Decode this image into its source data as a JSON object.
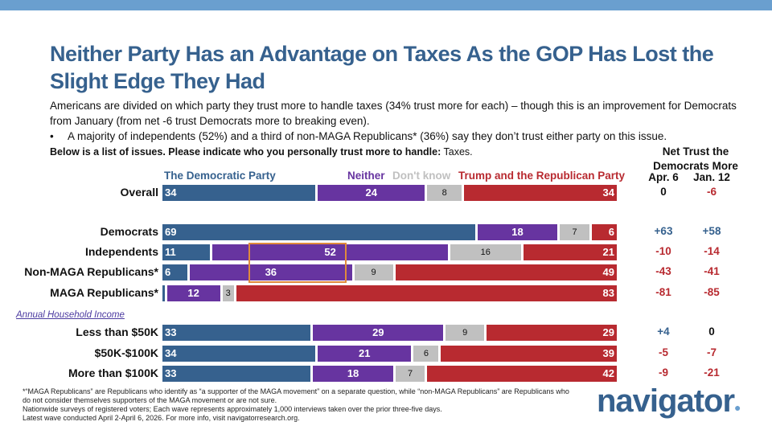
{
  "title": "Neither Party Has an Advantage on Taxes As the GOP Has Lost the Slight Edge They Had",
  "subtitle": "Americans are divided on which party they trust more to handle taxes (34% trust more for each) – though this is an improvement for Democrats from January (from net -6 trust Democrats more to breaking even).",
  "bullet": "A majority of independents (52%) and a third of non-MAGA Republicans* (36%) say they don’t trust either party on this issue.",
  "question": {
    "prefix": "Below is a list of issues. Please indicate who you personally trust more to handle:",
    "topic": "Taxes."
  },
  "net_header": {
    "title": "Net Trust the Democrats More",
    "col1": "Apr. 6",
    "col2": "Jan. 12"
  },
  "section_label": "Annual Household Income",
  "footnote": [
    "*“MAGA Republicans” are Republicans who identify as “a supporter of the MAGA movement” on a separate question, while “non-MAGA Republicans” are Republicans who do not consider themselves supporters of the MAGA movement or are not sure.",
    "Nationwide surveys of registered voters; Each wave represents approximately 1,000 interviews taken over the prior three-five days.",
    "Latest wave conducted April 2-April 6, 2026. For more info, visit navigatorresearch.org."
  ],
  "logo": "navigator",
  "colors": {
    "dem": "#36618e",
    "neither": "#6734a0",
    "dontknow": "#c0c0c0",
    "rep": "#b82a30",
    "title": "#36618e"
  },
  "chart_data": {
    "type": "bar",
    "orientation": "horizontal-stacked",
    "series": [
      {
        "name": "The Democratic Party",
        "values": [
          34,
          69,
          11,
          6,
          1,
          33,
          34,
          33
        ]
      },
      {
        "name": "Neither",
        "values": [
          24,
          18,
          52,
          36,
          12,
          29,
          21,
          18
        ]
      },
      {
        "name": "Don't know",
        "values": [
          8,
          7,
          16,
          9,
          3,
          9,
          6,
          7
        ]
      },
      {
        "name": "Trump and the Republican Party",
        "values": [
          34,
          6,
          21,
          49,
          83,
          29,
          39,
          42
        ]
      }
    ],
    "categories": [
      "Overall",
      "Democrats",
      "Independents",
      "Non-MAGA Republicans*",
      "MAGA Republicans*",
      "Less than $50K",
      "$50K-$100K",
      "More than $100K"
    ],
    "net_apr6": [
      "0",
      "+63",
      "-10",
      "-43",
      "-81",
      "+4",
      "-5",
      "-9"
    ],
    "net_jan12": [
      "-6",
      "+58",
      "-14",
      "-41",
      "-85",
      "0",
      "-7",
      "-21"
    ],
    "highlight": {
      "category": "Independents",
      "series": "Neither"
    }
  }
}
